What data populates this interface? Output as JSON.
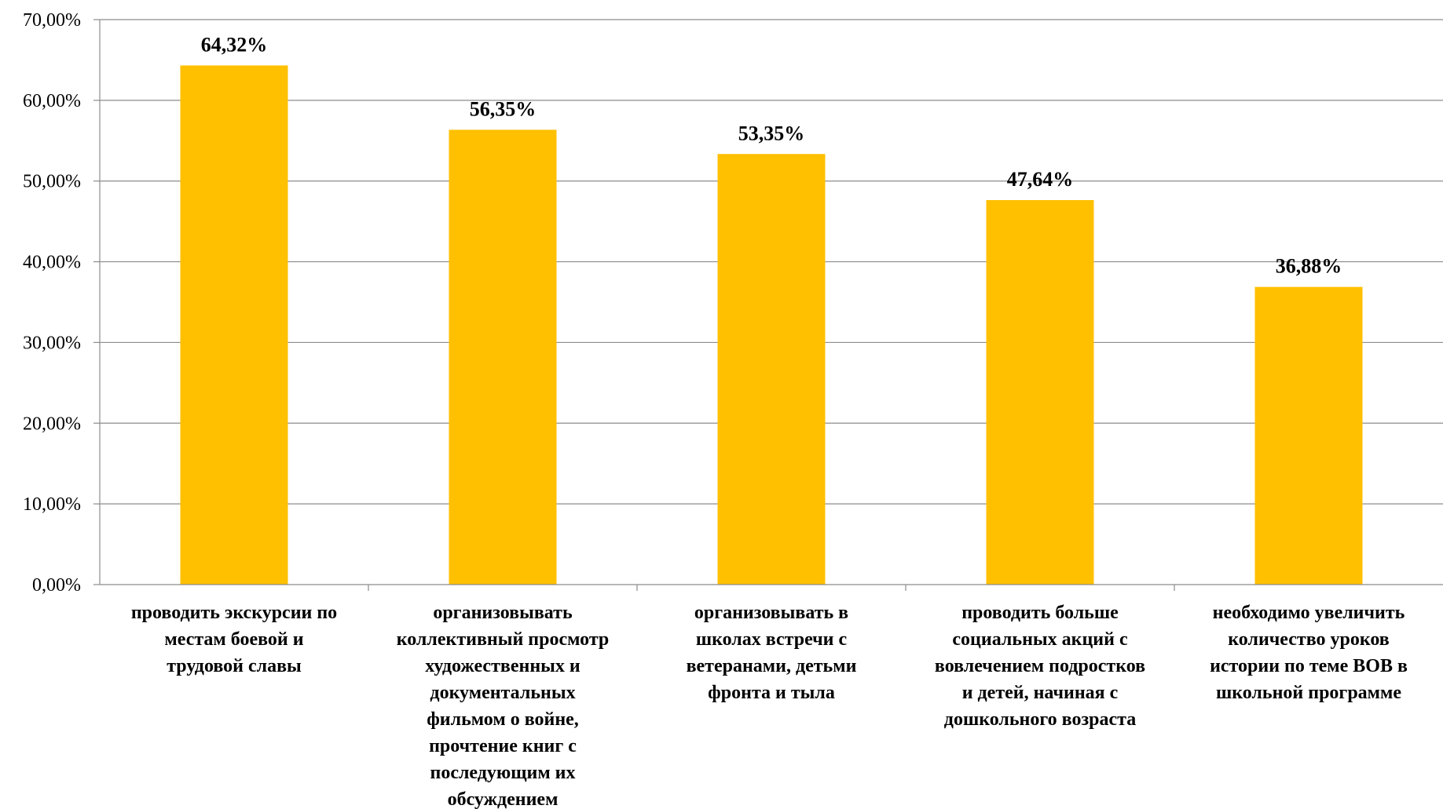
{
  "chart_data": {
    "type": "bar",
    "title": "",
    "xlabel": "",
    "ylabel": "",
    "ylim": [
      0,
      70
    ],
    "y_ticks": [
      "0,00%",
      "10,00%",
      "20,00%",
      "30,00%",
      "40,00%",
      "50,00%",
      "60,00%",
      "70,00%"
    ],
    "grid": true,
    "bar_color": "#FFC000",
    "categories": [
      "проводить экскурсии по местам боевой и трудовой славы",
      "организовывать коллективный просмотр художественных и документальных фильмом о войне, прочтение книг с последующим их обсуждением",
      "организовывать в школах встречи с ветеранами, детьми фронта и тыла",
      "проводить больше социальных акций с вовлечением подростков и детей, начиная с дошкольного возраста",
      "необходимо увеличить количество уроков истории по теме ВОВ в школьной программе"
    ],
    "category_lines": [
      [
        "проводить экскурсии по",
        "местам боевой и",
        "трудовой славы"
      ],
      [
        "организовывать",
        "коллективный просмотр",
        "художественных и",
        "документальных",
        "фильмом о войне,",
        "прочтение книг с",
        "последующим их",
        "обсуждением"
      ],
      [
        "организовывать в",
        "школах встречи с",
        "ветеранами, детьми",
        "фронта и тыла"
      ],
      [
        "проводить больше",
        "социальных акций с",
        "вовлечением подростков",
        "и детей, начиная с",
        "дошкольного возраста"
      ],
      [
        "необходимо увеличить",
        "количество уроков",
        "истории по теме ВОВ в",
        "школьной программе"
      ]
    ],
    "values": [
      64.32,
      56.35,
      53.35,
      47.64,
      36.88
    ],
    "data_labels": [
      "64,32%",
      "56,35%",
      "53,35%",
      "47,64%",
      "36,88%"
    ]
  }
}
